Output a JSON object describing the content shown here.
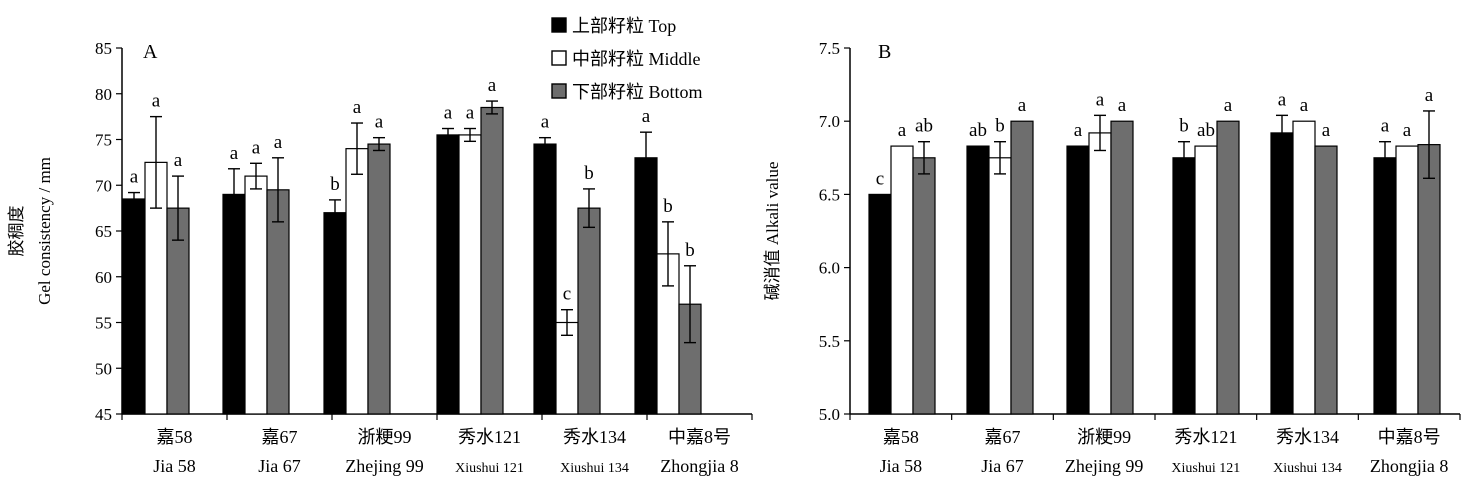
{
  "legend": [
    {
      "label": "上部籽粒 Top",
      "color": "#000000"
    },
    {
      "label": "中部籽粒 Middle",
      "color": "#ffffff"
    },
    {
      "label": "下部籽粒 Bottom",
      "color": "#6e6e6e"
    }
  ],
  "chart_data": [
    {
      "type": "bar",
      "panel_label": "A",
      "ylabel_cn": "胶稠度",
      "ylabel": "Gel consistency / mm",
      "ylim": [
        45,
        85
      ],
      "yticks": [
        45,
        50,
        55,
        60,
        65,
        70,
        75,
        80,
        85
      ],
      "categories_cn": [
        "嘉58",
        "嘉67",
        "浙粳99",
        "秀水121",
        "秀水134",
        "中嘉8号"
      ],
      "categories": [
        "Jia 58",
        "Jia 67",
        "Zhejing 99",
        "Xiushui 121",
        "Xiushui 134",
        "Zhongjia 8"
      ],
      "series": [
        {
          "name": "上部籽粒 Top",
          "values": [
            68.5,
            69.0,
            67.0,
            75.5,
            74.5,
            73.0
          ],
          "errors": [
            0.7,
            2.8,
            1.4,
            0.7,
            0.7,
            2.8
          ],
          "letters": [
            "a",
            "a",
            "b",
            "a",
            "a",
            "a"
          ]
        },
        {
          "name": "中部籽粒 Middle",
          "values": [
            72.5,
            71.0,
            74.0,
            75.5,
            55.0,
            62.5
          ],
          "errors": [
            5.0,
            1.4,
            2.8,
            0.7,
            1.4,
            3.5
          ],
          "letters": [
            "a",
            "a",
            "a",
            "a",
            "c",
            "b"
          ]
        },
        {
          "name": "下部籽粒 Bottom",
          "values": [
            67.5,
            69.5,
            74.5,
            78.5,
            67.5,
            57.0
          ],
          "errors": [
            3.5,
            3.5,
            0.7,
            0.7,
            2.1,
            4.2
          ],
          "letters": [
            "a",
            "a",
            "a",
            "a",
            "b",
            "b"
          ]
        }
      ]
    },
    {
      "type": "bar",
      "panel_label": "B",
      "ylabel_cn": "碱消值",
      "ylabel": "Alkali value",
      "ylim": [
        5.0,
        7.5
      ],
      "yticks": [
        "5.0",
        "5.5",
        "6.0",
        "6.5",
        "7.0",
        "7.5"
      ],
      "categories_cn": [
        "嘉58",
        "嘉67",
        "浙粳99",
        "秀水121",
        "秀水134",
        "中嘉8号"
      ],
      "categories": [
        "Jia 58",
        "Jia 67",
        "Zhejing 99",
        "Xiushui 121",
        "Xiushui 134",
        "Zhongjia 8"
      ],
      "series": [
        {
          "name": "上部籽粒 Top",
          "values": [
            6.5,
            6.83,
            6.83,
            6.75,
            6.92,
            6.75
          ],
          "errors": [
            0,
            0,
            0,
            0.11,
            0.12,
            0.11
          ],
          "letters": [
            "c",
            "ab",
            "a",
            "b",
            "a",
            "a"
          ]
        },
        {
          "name": "中部籽粒 Middle",
          "values": [
            6.83,
            6.75,
            6.92,
            6.83,
            7.0,
            6.83
          ],
          "errors": [
            0,
            0.11,
            0.12,
            0,
            0,
            0
          ],
          "letters": [
            "a",
            "b",
            "a",
            "ab",
            "a",
            "a"
          ]
        },
        {
          "name": "下部籽粒 Bottom",
          "values": [
            6.75,
            7.0,
            7.0,
            7.0,
            6.83,
            6.84
          ],
          "errors": [
            0.11,
            0,
            0,
            0,
            0,
            0.23
          ],
          "letters": [
            "ab",
            "a",
            "a",
            "a",
            "a",
            "a"
          ]
        }
      ]
    }
  ]
}
